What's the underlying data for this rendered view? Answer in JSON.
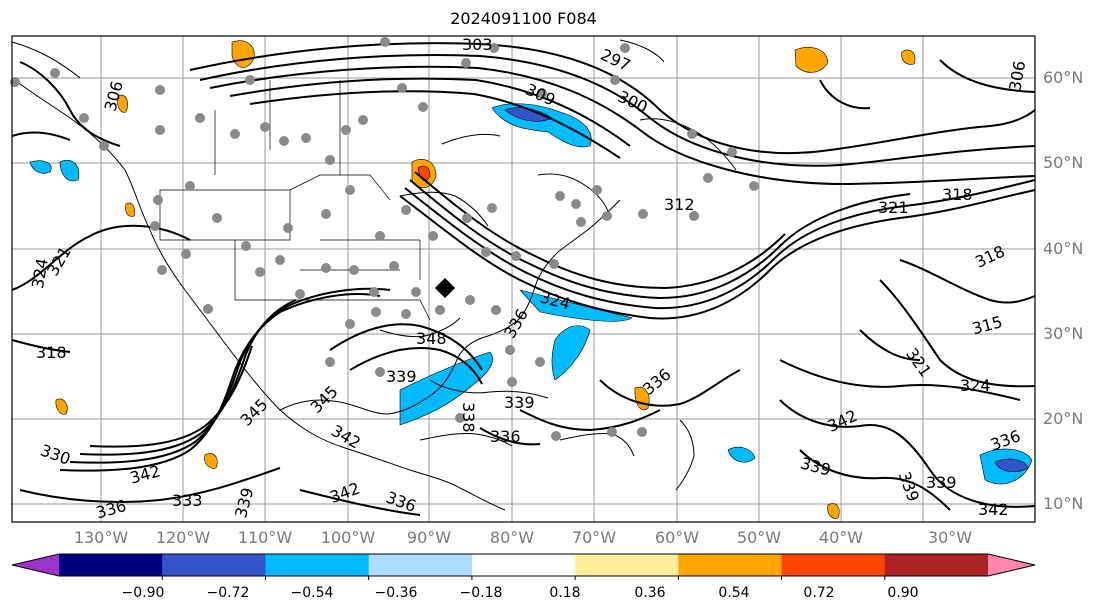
{
  "title": "2024091100 F084",
  "lat_labels": [
    "60°N",
    "50°N",
    "40°N",
    "30°N",
    "20°N",
    "10°N"
  ],
  "lon_labels": [
    "130°W",
    "120°W",
    "110°W",
    "100°W",
    "90°W",
    "80°W",
    "70°W",
    "60°W",
    "50°W",
    "40°W",
    "30°W"
  ],
  "colorbar": {
    "colors": [
      "#9933cc",
      "#000080",
      "#3355cc",
      "#00bbff",
      "#aaddff",
      "#ffffff",
      "#ffee99",
      "#ffa500",
      "#ff4400",
      "#aa2222",
      "#ff88aa"
    ],
    "ticks": [
      "−0.90",
      "−0.72",
      "−0.54",
      "−0.36",
      "−0.18",
      "0.18",
      "0.36",
      "0.54",
      "0.72",
      "0.90"
    ]
  },
  "contour_labels": [
    "306",
    "306",
    "309",
    "300",
    "297",
    "303",
    "312",
    "321",
    "318",
    "318",
    "315",
    "321",
    "324",
    "324",
    "324",
    "321",
    "318",
    "330",
    "342",
    "333",
    "336",
    "339",
    "345",
    "345",
    "342",
    "348",
    "339",
    "336",
    "336",
    "339",
    "336",
    "338",
    "342",
    "339",
    "339",
    "336",
    "342",
    "339",
    "336",
    "342"
  ]
}
